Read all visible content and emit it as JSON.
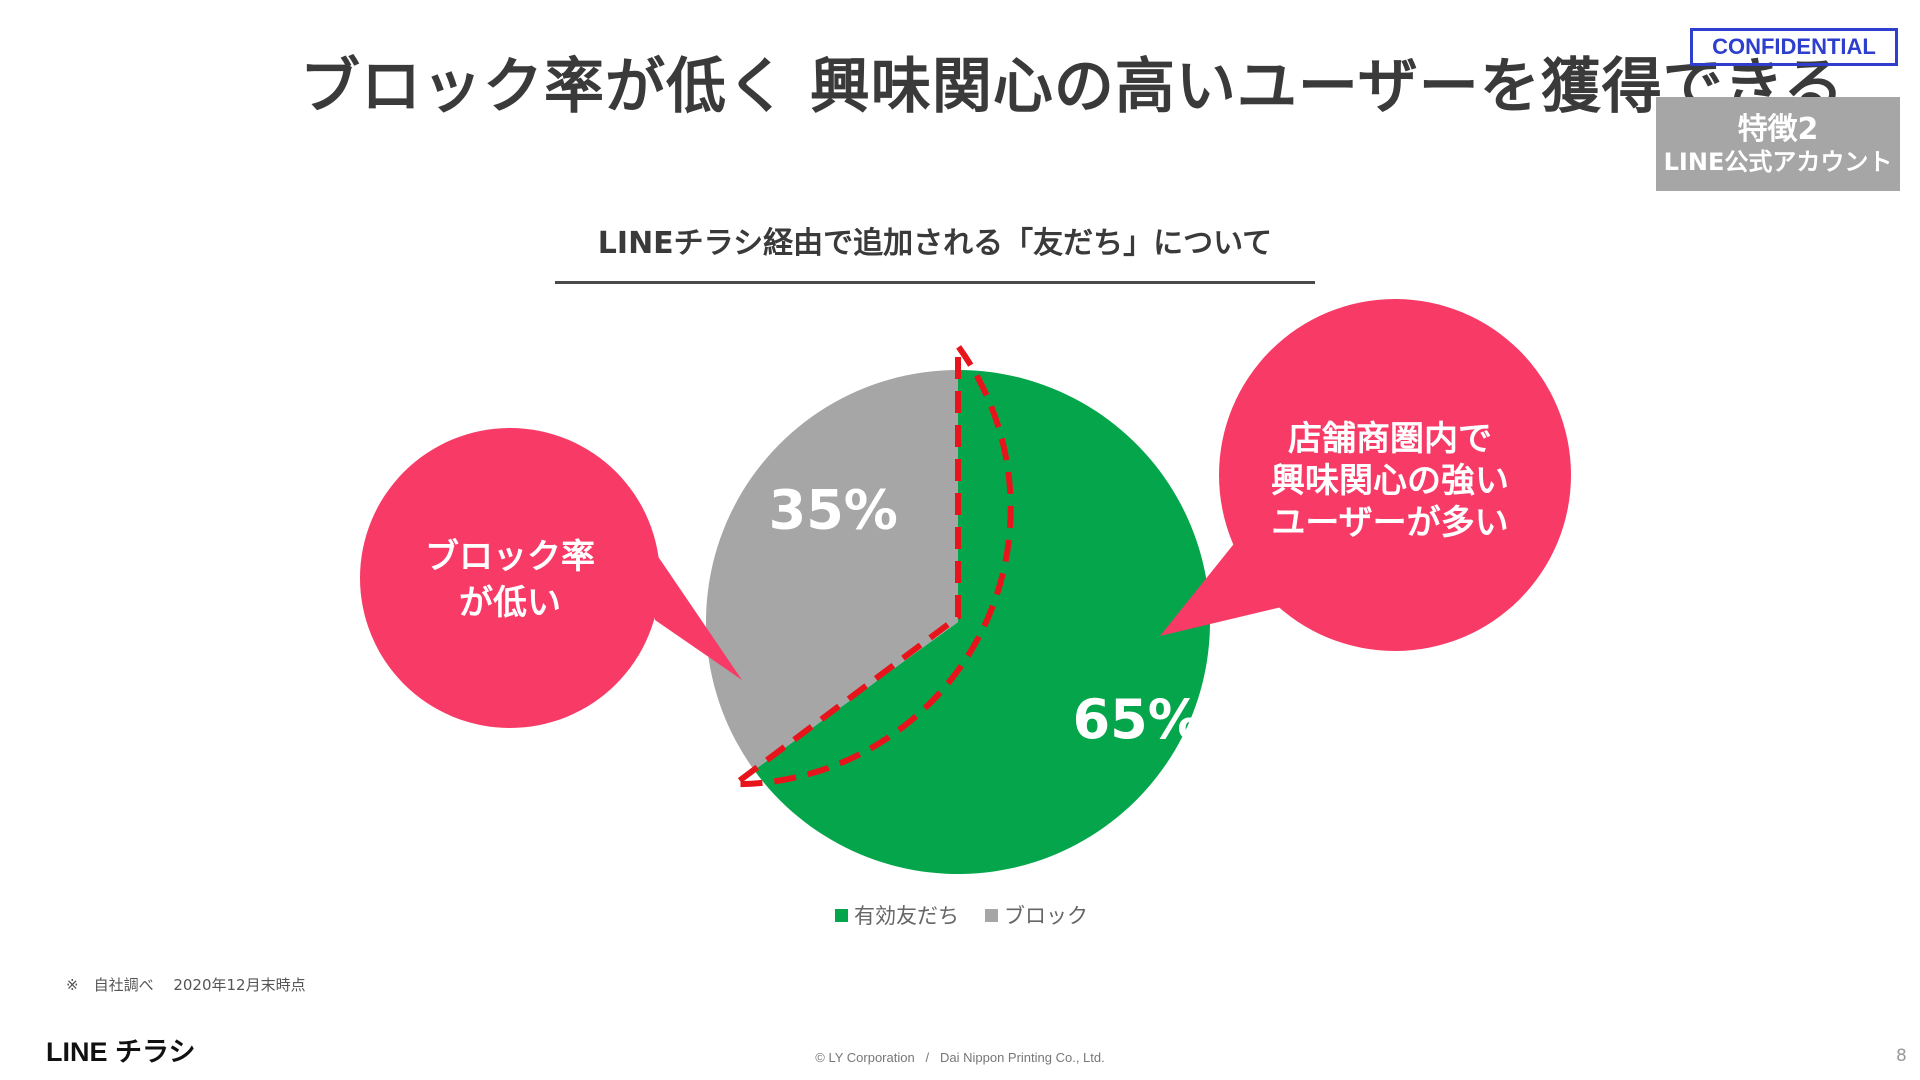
{
  "slide": {
    "title": "ブロック率が低く 興味関心の高いユーザーを獲得できる",
    "confidential": "CONFIDENTIAL",
    "feature_badge": {
      "line1": "特徴2",
      "line2": "LINE公式アカウント"
    },
    "subtitle": "LINEチラシ経由で追加される「友だち」について",
    "callout_left": {
      "line1": "ブロック率",
      "line2": "が低い"
    },
    "callout_right": {
      "line1": "店舗商圏内で",
      "line2": "興味関心の強い",
      "line3": "ユーザーが多い"
    },
    "footnote": "※　自社調べ　 2020年12月末時点",
    "logo": "LINE チラシ",
    "copyright": "© LY Corporation   /   Dai Nippon Printing Co., Ltd.",
    "page_number": "8"
  },
  "colors": {
    "green": "#05a64b",
    "gray": "#a6a6a6",
    "pink": "#f73a66",
    "highlight_red": "#e8141c"
  },
  "chart_data": {
    "type": "pie",
    "categories": [
      "有効友だち",
      "ブロック"
    ],
    "values": [
      65,
      35
    ],
    "value_labels": [
      "65%",
      "35%"
    ],
    "legend": [
      "有効友だち",
      "ブロック"
    ],
    "legend_position": "bottom",
    "highlighted_slice": "ブロック"
  }
}
